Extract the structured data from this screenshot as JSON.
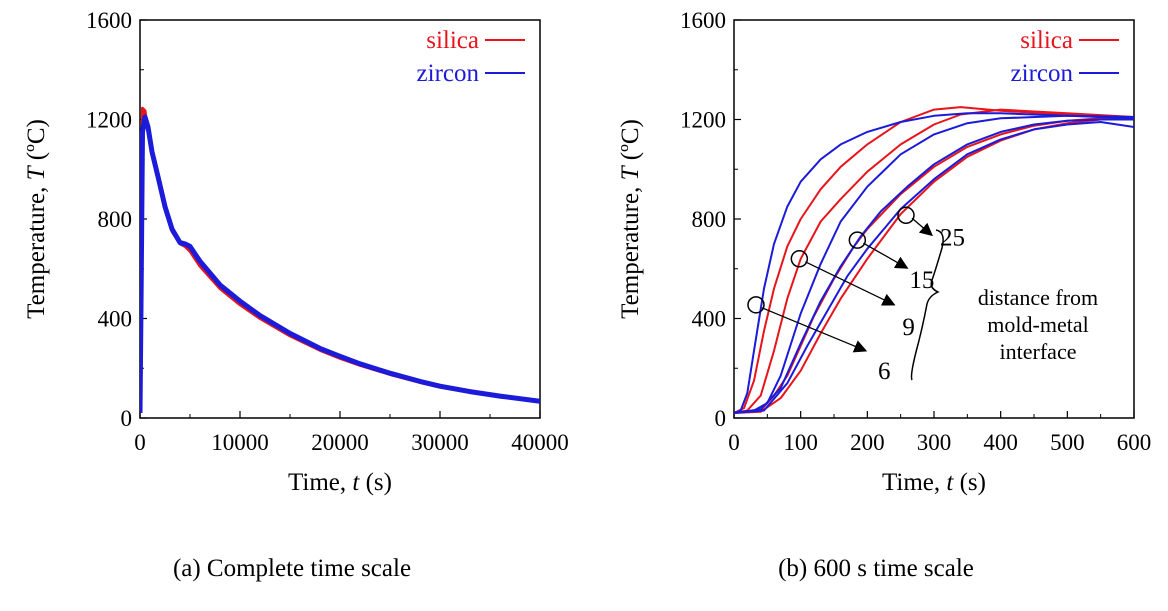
{
  "chart_data": [
    {
      "type": "line",
      "caption": "(a) Complete time scale",
      "xlabel": "Time, t (s)",
      "ylabel": "Temperature, T (ºC)",
      "xlim": [
        0,
        40000
      ],
      "ylim": [
        0,
        1600
      ],
      "xticks": [
        0,
        10000,
        20000,
        30000,
        40000
      ],
      "xtick_labels": [
        "0",
        "10000",
        "20000",
        "30000",
        "40000"
      ],
      "yticks": [
        0,
        400,
        800,
        1200,
        1600
      ],
      "ytick_labels": [
        "0",
        "400",
        "800",
        "1200",
        "1600"
      ],
      "legend": {
        "placement": "top-right",
        "entries": [
          "silica",
          "zircon"
        ]
      },
      "series": [
        {
          "name": "silica",
          "color": "#e8141b",
          "x": [
            0,
            100,
            250,
            500,
            800,
            1200,
            1800,
            2500,
            3200,
            4000,
            4500,
            5000,
            6000,
            8000,
            10000,
            12000,
            15000,
            18000,
            20000,
            22000,
            25000,
            28000,
            30000,
            33000,
            36000,
            40000
          ],
          "y": [
            20,
            500,
            1245,
            1235,
            1150,
            1060,
            960,
            840,
            750,
            700,
            690,
            670,
            610,
            520,
            455,
            400,
            330,
            272,
            240,
            212,
            175,
            143,
            124,
            103,
            86,
            65
          ]
        },
        {
          "name": "zircon",
          "color": "#1b1bd9",
          "x": [
            0,
            100,
            250,
            500,
            800,
            1200,
            1800,
            2500,
            3200,
            4000,
            4500,
            5000,
            6000,
            8000,
            10000,
            12000,
            15000,
            18000,
            20000,
            22000,
            25000,
            28000,
            30000,
            33000,
            36000,
            40000
          ],
          "y": [
            20,
            450,
            1150,
            1210,
            1170,
            1070,
            970,
            850,
            760,
            705,
            700,
            690,
            630,
            535,
            470,
            412,
            340,
            280,
            248,
            218,
            180,
            147,
            128,
            106,
            88,
            67
          ]
        }
      ]
    },
    {
      "type": "line",
      "caption": "(b) 600 s time scale",
      "xlabel": "Time, t (s)",
      "ylabel": "Temperature, T (ºC)",
      "xlim": [
        0,
        600
      ],
      "ylim": [
        0,
        1600
      ],
      "xticks": [
        0,
        100,
        200,
        300,
        400,
        500,
        600
      ],
      "xtick_labels": [
        "0",
        "100",
        "200",
        "300",
        "400",
        "500",
        "600"
      ],
      "yticks": [
        0,
        400,
        800,
        1200,
        1600
      ],
      "ytick_labels": [
        "0",
        "400",
        "800",
        "1200",
        "1600"
      ],
      "legend": {
        "placement": "top-right",
        "entries": [
          "silica",
          "zircon"
        ]
      },
      "series": [
        {
          "name": "silica",
          "distance": "6",
          "color": "#e8141b",
          "x": [
            0,
            15,
            30,
            45,
            60,
            80,
            100,
            130,
            160,
            200,
            250,
            300,
            340,
            400,
            500,
            600
          ],
          "y": [
            20,
            40,
            150,
            350,
            520,
            690,
            800,
            920,
            1010,
            1100,
            1190,
            1240,
            1250,
            1235,
            1220,
            1205
          ]
        },
        {
          "name": "silica",
          "distance": "9",
          "color": "#e8141b",
          "x": [
            0,
            20,
            40,
            60,
            80,
            100,
            130,
            160,
            200,
            250,
            300,
            340,
            400,
            500,
            600
          ],
          "y": [
            20,
            30,
            90,
            270,
            480,
            640,
            790,
            880,
            990,
            1100,
            1180,
            1220,
            1240,
            1225,
            1210
          ]
        },
        {
          "name": "silica",
          "distance": "15",
          "color": "#e8141b",
          "x": [
            0,
            40,
            60,
            80,
            100,
            120,
            150,
            180,
            200,
            250,
            300,
            350,
            400,
            450,
            500,
            550,
            600
          ],
          "y": [
            20,
            30,
            90,
            170,
            290,
            410,
            560,
            690,
            760,
            900,
            1010,
            1090,
            1140,
            1175,
            1195,
            1205,
            1210
          ]
        },
        {
          "name": "silica",
          "distance": "25",
          "color": "#e8141b",
          "x": [
            0,
            40,
            70,
            100,
            130,
            160,
            200,
            250,
            300,
            350,
            400,
            450,
            500,
            550,
            600
          ],
          "y": [
            20,
            25,
            80,
            190,
            340,
            480,
            640,
            820,
            950,
            1050,
            1115,
            1160,
            1185,
            1200,
            1205
          ]
        },
        {
          "name": "zircon",
          "distance": "6",
          "color": "#1b1bd9",
          "x": [
            0,
            10,
            20,
            30,
            45,
            60,
            80,
            100,
            130,
            160,
            200,
            250,
            300,
            350,
            400,
            500,
            600
          ],
          "y": [
            20,
            30,
            100,
            270,
            520,
            700,
            850,
            950,
            1040,
            1100,
            1150,
            1190,
            1215,
            1225,
            1225,
            1215,
            1210
          ]
        },
        {
          "name": "zircon",
          "distance": "9",
          "color": "#1b1bd9",
          "x": [
            0,
            30,
            50,
            70,
            100,
            130,
            160,
            200,
            250,
            300,
            350,
            400,
            500,
            600
          ],
          "y": [
            20,
            30,
            60,
            170,
            420,
            620,
            790,
            930,
            1060,
            1140,
            1185,
            1205,
            1215,
            1205
          ]
        },
        {
          "name": "zircon",
          "distance": "15",
          "color": "#1b1bd9",
          "x": [
            0,
            40,
            70,
            100,
            130,
            160,
            190,
            220,
            260,
            300,
            350,
            400,
            450,
            500,
            550,
            600
          ],
          "y": [
            20,
            35,
            120,
            300,
            470,
            610,
            730,
            830,
            930,
            1020,
            1100,
            1150,
            1180,
            1195,
            1200,
            1200
          ]
        },
        {
          "name": "zircon",
          "distance": "25",
          "color": "#1b1bd9",
          "x": [
            0,
            45,
            80,
            110,
            140,
            170,
            200,
            250,
            300,
            350,
            400,
            450,
            500,
            550,
            600
          ],
          "y": [
            20,
            30,
            140,
            290,
            430,
            570,
            680,
            840,
            960,
            1060,
            1120,
            1160,
            1180,
            1190,
            1170
          ]
        }
      ],
      "annotations": [
        {
          "label": "6",
          "point": [
            33,
            455
          ]
        },
        {
          "label": "9",
          "point": [
            98,
            640
          ]
        },
        {
          "label": "15",
          "point": [
            185,
            715
          ]
        },
        {
          "label": "25",
          "point": [
            258,
            815
          ]
        }
      ],
      "note_lines": [
        "distance from",
        "mold-metal",
        "interface"
      ]
    }
  ]
}
